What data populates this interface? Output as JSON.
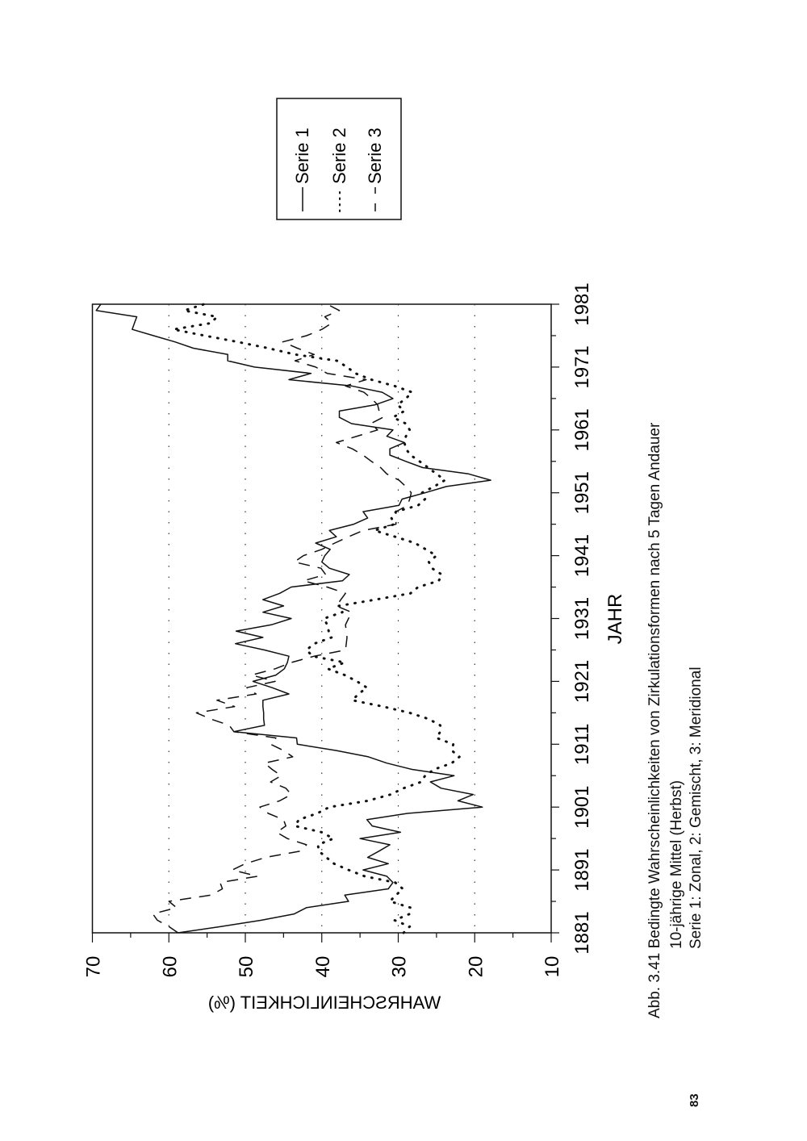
{
  "page_number": "83",
  "caption": {
    "line1": "Abb. 3.41 Bedingte Wahrscheinlichkeiten von Zirkulationsformen nach 5 Tagen Andauer",
    "line2": "10-jährige Mittel (Herbst)",
    "line3": "Serie 1: Zonal, 2: Gemischt, 3: Meridional"
  },
  "chart_data": {
    "type": "line",
    "orientation": "rotated 90° counter-clockwise",
    "xlabel": "JAHR",
    "ylabel": "WAHRSCHEINLICHKEIT (%)",
    "xlim": [
      1881,
      1981
    ],
    "ylim": [
      10,
      70
    ],
    "x_ticks": [
      "1881",
      "1891",
      "1901",
      "1911",
      "1921",
      "1931",
      "1941",
      "1951",
      "1961",
      "1971",
      "1981"
    ],
    "y_ticks": [
      "10",
      "20",
      "30",
      "40",
      "50",
      "60",
      "70"
    ],
    "grid": "dotted lines at 20, 30, 40, 50, 60",
    "legend_position": "top-right (outside plot)",
    "x": [
      1881,
      1882,
      1883,
      1884,
      1885,
      1886,
      1887,
      1888,
      1889,
      1890,
      1891,
      1892,
      1893,
      1894,
      1895,
      1896,
      1897,
      1898,
      1899,
      1900,
      1901,
      1902,
      1903,
      1904,
      1905,
      1906,
      1907,
      1908,
      1909,
      1910,
      1911,
      1912,
      1913,
      1914,
      1915,
      1916,
      1917,
      1918,
      1919,
      1920,
      1921,
      1922,
      1923,
      1924,
      1925,
      1926,
      1927,
      1928,
      1929,
      1930,
      1931,
      1932,
      1933,
      1934,
      1935,
      1936,
      1937,
      1938,
      1939,
      1940,
      1941,
      1942,
      1943,
      1944,
      1945,
      1946,
      1947,
      1948,
      1949,
      1950,
      1951,
      1952,
      1953,
      1954,
      1955,
      1956,
      1957,
      1958,
      1959,
      1960,
      1961,
      1962,
      1963,
      1964,
      1965,
      1966,
      1967,
      1968,
      1969,
      1970,
      1971,
      1972,
      1973,
      1974,
      1975,
      1976,
      1977,
      1978,
      1979,
      1980,
      1981
    ],
    "series": [
      {
        "name": "Serie 1",
        "style": "solid",
        "values": [
          58.8,
          53.2,
          47.9,
          43.6,
          42.0,
          36.5,
          37.0,
          31.3,
          30.7,
          31.5,
          34.6,
          31.3,
          34.0,
          32.5,
          31.1,
          35.0,
          29.7,
          33.4,
          34.1,
          28.8,
          19.0,
          22.2,
          20.2,
          24.4,
          25.8,
          22.7,
          28.2,
          31.5,
          33.9,
          38.1,
          43.2,
          43.3,
          51.5,
          47.5,
          47.6,
          47.6,
          47.7,
          47.7,
          44.3,
          46.5,
          49.0,
          46.0,
          44.9,
          44.5,
          44.3,
          47.5,
          51.3,
          47.7,
          51.2,
          46.6,
          44.0,
          47.7,
          45.0,
          47.7,
          45.5,
          44.0,
          37.3,
          36.4,
          39.0,
          40.0,
          39.6,
          38.9,
          40.8,
          38.1,
          39.0,
          35.8,
          34.0,
          34.6,
          29.9,
          29.5,
          26.5,
          23.7,
          17.9,
          20.8,
          26.8,
          29.0,
          31.1,
          31.1,
          29.2,
          31.5,
          30.7,
          36.1,
          37.7,
          37.7,
          33.0,
          30.7,
          32.1,
          36.1,
          44.3,
          41.4,
          48.8,
          52.3,
          52.3,
          56.8,
          59.2,
          62.0,
          64.8,
          64.5,
          64.2,
          69.5,
          68.9
        ]
      },
      {
        "name": "Serie 2",
        "style": "dotted",
        "values": [
          29.3,
          28.5,
          30.5,
          28.5,
          28.4,
          31.1,
          30.3,
          29.4,
          30.4,
          34.4,
          36.5,
          38.4,
          39.4,
          40.4,
          40.5,
          38.5,
          40.0,
          43.5,
          43.0,
          40.6,
          39.0,
          34.0,
          31.0,
          29.3,
          27.0,
          26.5,
          25.3,
          23.0,
          22.0,
          23.0,
          22.8,
          25.0,
          24.5,
          24.5,
          26.0,
          28.5,
          32.0,
          36.0,
          35.2,
          34.1,
          35.4,
          37.0,
          39.2,
          37.0,
          41.2,
          42.0,
          41.0,
          38.7,
          39.1,
          39.3,
          39.7,
          37.3,
          37.8,
          33.0,
          28.4,
          27.4,
          24.7,
          24.3,
          25.6,
          26.0,
          25.0,
          26.4,
          27.8,
          30.4,
          33.1,
          30.5,
          30.9,
          30.3,
          27.4,
          26.5,
          26.9,
          25.3,
          23.9,
          25.0,
          26.1,
          27.2,
          28.4,
          29.0,
          29.2,
          29.0,
          28.5,
          29.0,
          30.7,
          29.2,
          30.1,
          29.0,
          28.2,
          30.5,
          33.5,
          35.6,
          36.7,
          38.0,
          43.5,
          47.0,
          51.0,
          55.3,
          59.4,
          54.5,
          53.7,
          58.0,
          55.4
        ]
      },
      {
        "name": "Serie 3",
        "style": "dashed",
        "values": [
          58.8,
          60.0,
          61.5,
          62.1,
          59.0,
          60.0,
          54.5,
          53.0,
          53.3,
          48.4,
          51.7,
          50.0,
          47.3,
          42.8,
          42.0,
          44.5,
          45.9,
          44.7,
          45.0,
          47.0,
          48.1,
          45.5,
          44.0,
          44.7,
          46.7,
          45.3,
          46.5,
          47.5,
          43.8,
          45.0,
          46.7,
          46.0,
          51.5,
          52.1,
          54.5,
          56.4,
          51.4,
          53.7,
          48.6,
          49.8,
          46.1,
          49.2,
          46.1,
          44.0,
          41.0,
          36.9,
          36.8,
          36.7,
          36.8,
          36.9,
          36.5,
          36.1,
          38.1,
          37.5,
          36.9,
          39.3,
          42.4,
          39.5,
          40.1,
          43.6,
          42.4,
          40.0,
          38.3,
          36.5,
          34.6,
          30.3,
          30.3,
          30.3,
          28.8,
          28.5,
          28.3,
          29.0,
          29.9,
          31.5,
          32.3,
          33.5,
          34.6,
          36.0,
          38.1,
          35.4,
          32.7,
          33.6,
          32.0,
          32.5,
          32.7,
          33.5,
          34.5,
          36.9,
          34.2,
          39.3,
          40.8,
          43.5,
          41.0,
          43.2,
          45.1,
          42.0,
          40.0,
          38.7,
          39.6,
          37.7,
          39.3
        ]
      }
    ]
  }
}
